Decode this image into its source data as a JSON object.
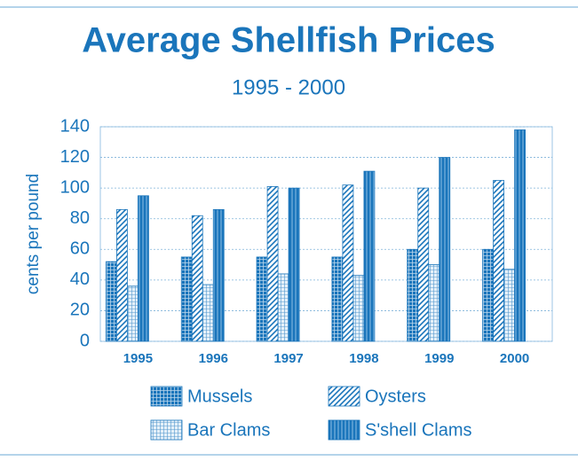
{
  "chart_data": {
    "type": "bar",
    "title": "Average Shellfish Prices",
    "subtitle": "1995 - 2000",
    "y_label": "cents per pound",
    "categories": [
      "1995",
      "1996",
      "1997",
      "1998",
      "1999",
      "2000"
    ],
    "series": [
      {
        "name": "Mussels",
        "color": "#1a75bb",
        "pattern": "checker",
        "values": [
          52,
          55,
          55,
          55,
          60,
          60
        ]
      },
      {
        "name": "Oysters",
        "color": "#1a75bb",
        "pattern": "diagonal",
        "values": [
          86,
          82,
          101,
          102,
          100,
          105
        ]
      },
      {
        "name": "Bar Clams",
        "color": "#1a75bb",
        "pattern": "fine-grid",
        "values": [
          36,
          37,
          44,
          43,
          50,
          47
        ]
      },
      {
        "name": "S'shell Clams",
        "color": "#1a75bb",
        "pattern": "vertical",
        "values": [
          95,
          86,
          100,
          111,
          120,
          138
        ]
      }
    ],
    "ylim": [
      0,
      140
    ],
    "yticks": [
      0,
      20,
      40,
      60,
      80,
      100,
      120,
      140
    ],
    "grid": true
  }
}
